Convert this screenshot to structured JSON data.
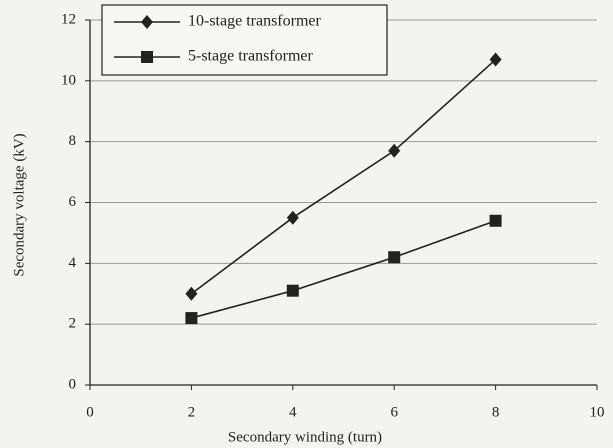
{
  "chart_data": {
    "type": "line",
    "x_label": "Secondary winding (turn)",
    "y_label": "Secondary voltage (kV)",
    "x": [
      2,
      4,
      6,
      8
    ],
    "series": [
      {
        "name": "10-stage transformer",
        "color": "#222222",
        "marker": "diamond",
        "values": [
          3.0,
          5.5,
          7.7,
          10.7
        ]
      },
      {
        "name": "5-stage transformer",
        "color": "#222222",
        "marker": "square",
        "values": [
          2.2,
          3.1,
          4.2,
          5.4
        ]
      }
    ],
    "xlim": [
      0,
      10
    ],
    "xticks": [
      0,
      2,
      4,
      6,
      8,
      10
    ],
    "ylim": [
      0,
      12
    ],
    "yticks": [
      0,
      2,
      4,
      6,
      8,
      10,
      12
    ],
    "grid": true,
    "legend": "upper left"
  }
}
